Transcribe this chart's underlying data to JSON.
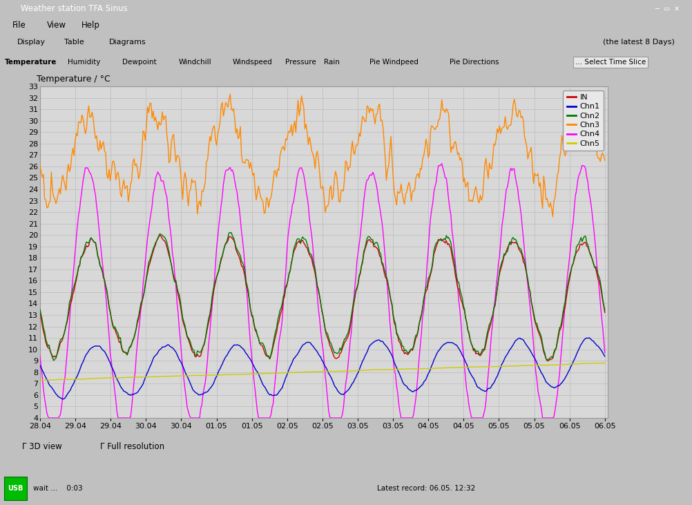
{
  "title": "Temperature / °C",
  "ylim": [
    4,
    33
  ],
  "xlim": [
    0,
    193
  ],
  "yticks": [
    4,
    5,
    6,
    7,
    8,
    9,
    10,
    11,
    12,
    13,
    14,
    15,
    16,
    17,
    18,
    19,
    20,
    21,
    22,
    23,
    24,
    25,
    26,
    27,
    28,
    29,
    30,
    31,
    32,
    33
  ],
  "xtick_labels": [
    "28.04",
    "29.04",
    "29.04",
    "30.04",
    "30.04",
    "01.05",
    "01.05",
    "02.05",
    "02.05",
    "03.05",
    "03.05",
    "04.05",
    "04.05",
    "05.05",
    "05.05",
    "06.05",
    "06.05"
  ],
  "xtick_positions": [
    0,
    12,
    24,
    36,
    48,
    60,
    72,
    84,
    96,
    108,
    120,
    132,
    144,
    156,
    168,
    180,
    192
  ],
  "bg_color": "#c0c0c0",
  "plot_bg_color": "#d8d8d8",
  "grid_color": "#bbbbbb",
  "legend_items": [
    "IN",
    "Chn1",
    "Chn2",
    "Chn3",
    "Chn4",
    "Chn5"
  ],
  "legend_colors": [
    "#cc0000",
    "#0000cc",
    "#007700",
    "#ff8800",
    "#ff00ff",
    "#cccc00"
  ],
  "window_title": "Weather station TFA Sinus",
  "status_right": "Latest record: 06.05. 12:32",
  "top_right_text": "(the latest 8 Days)",
  "select_button": "... Select Time Slice",
  "check_3d": "3D view",
  "check_full": "Full resolution",
  "tab_labels": [
    "Display",
    "Table",
    "Diagrams"
  ],
  "sensor_tabs": [
    "Temperature",
    "Humidity",
    "Dewpoint",
    "Windchill",
    "Windspeed",
    "Pressure",
    "Rain",
    "Pie Windpeed",
    "Pie Directions"
  ],
  "menu_items": [
    "File",
    "View",
    "Help"
  ],
  "titlebar_color": "#6a6a8a",
  "inner_bg": "#f0f0f0"
}
